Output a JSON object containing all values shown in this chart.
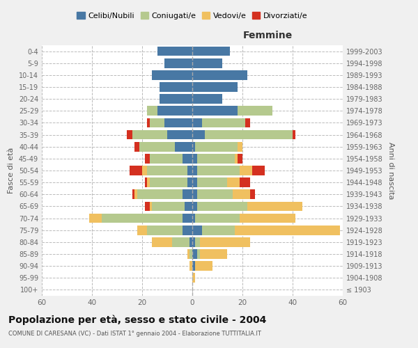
{
  "age_groups": [
    "0-4",
    "5-9",
    "10-14",
    "15-19",
    "20-24",
    "25-29",
    "30-34",
    "35-39",
    "40-44",
    "45-49",
    "50-54",
    "55-59",
    "60-64",
    "65-69",
    "70-74",
    "75-79",
    "80-84",
    "85-89",
    "90-94",
    "95-99",
    "100+"
  ],
  "birth_years": [
    "1999-2003",
    "1994-1998",
    "1989-1993",
    "1984-1988",
    "1979-1983",
    "1974-1978",
    "1969-1973",
    "1964-1968",
    "1959-1963",
    "1954-1958",
    "1949-1953",
    "1944-1948",
    "1939-1943",
    "1934-1938",
    "1929-1933",
    "1924-1928",
    "1919-1923",
    "1914-1918",
    "1909-1913",
    "1904-1908",
    "≤ 1903"
  ],
  "males": {
    "celibi": [
      14,
      11,
      16,
      13,
      13,
      14,
      11,
      10,
      7,
      4,
      2,
      2,
      4,
      3,
      4,
      4,
      1,
      0,
      0,
      0,
      0
    ],
    "coniugati": [
      0,
      0,
      0,
      0,
      0,
      4,
      6,
      14,
      14,
      13,
      16,
      15,
      18,
      13,
      32,
      14,
      7,
      1,
      0,
      0,
      0
    ],
    "vedovi": [
      0,
      0,
      0,
      0,
      0,
      0,
      0,
      0,
      0,
      0,
      2,
      1,
      1,
      1,
      5,
      4,
      8,
      1,
      1,
      0,
      0
    ],
    "divorziati": [
      0,
      0,
      0,
      0,
      0,
      0,
      1,
      2,
      2,
      2,
      5,
      1,
      1,
      2,
      0,
      0,
      0,
      0,
      0,
      0,
      0
    ]
  },
  "females": {
    "nubili": [
      15,
      12,
      22,
      18,
      12,
      18,
      4,
      5,
      1,
      2,
      2,
      2,
      2,
      2,
      1,
      4,
      1,
      2,
      1,
      0,
      0
    ],
    "coniugate": [
      0,
      0,
      0,
      0,
      0,
      14,
      17,
      35,
      17,
      15,
      17,
      12,
      14,
      20,
      18,
      13,
      2,
      1,
      0,
      0,
      0
    ],
    "vedove": [
      0,
      0,
      0,
      0,
      0,
      0,
      0,
      0,
      2,
      1,
      5,
      5,
      7,
      22,
      22,
      42,
      20,
      11,
      7,
      1,
      0
    ],
    "divorziate": [
      0,
      0,
      0,
      0,
      0,
      0,
      2,
      1,
      0,
      2,
      5,
      4,
      2,
      0,
      0,
      0,
      0,
      0,
      0,
      0,
      0
    ]
  },
  "colors": {
    "celibi": "#4878a4",
    "coniugati": "#b5c98e",
    "vedovi": "#f0c060",
    "divorziati": "#d43020"
  },
  "title": "Popolazione per età, sesso e stato civile - 2004",
  "subtitle": "COMUNE DI CARESANA (VC) - Dati ISTAT 1° gennaio 2004 - Elaborazione TUTTITALIA.IT",
  "xlabel_right": "Femmine",
  "ylabel_left": "Fasce di età",
  "ylabel_right": "Anni di nascita",
  "xlim": 60,
  "legend_labels": [
    "Celibi/Nubili",
    "Coniugati/e",
    "Vedovi/e",
    "Divorziati/e"
  ],
  "background_color": "#f0f0f0",
  "plot_background": "#ffffff"
}
